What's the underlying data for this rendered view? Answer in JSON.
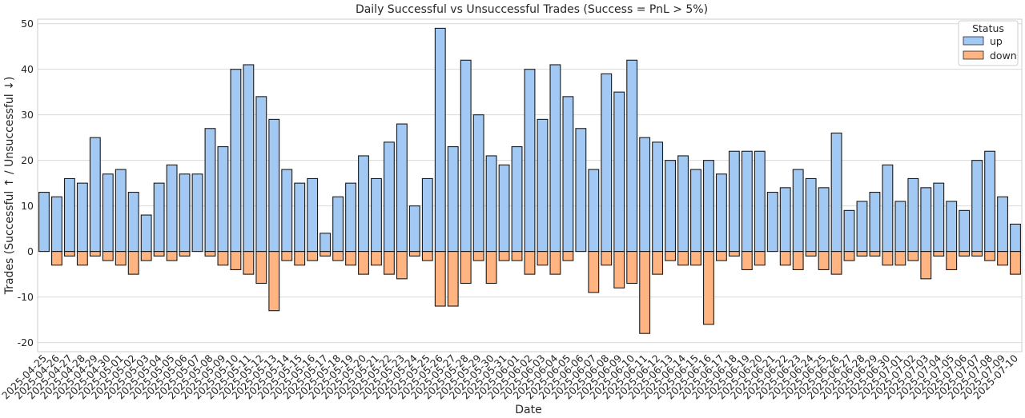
{
  "chart_data": {
    "type": "bar",
    "title": "Daily Successful vs Unsuccessful Trades (Success = PnL > 5%)",
    "xlabel": "Date",
    "ylabel": "Trades (Successful ↑ / Unsuccessful ↓)",
    "ylim": [
      -22,
      51
    ],
    "yticks": [
      -20,
      -10,
      0,
      10,
      20,
      30,
      40,
      50
    ],
    "grid": true,
    "legend": {
      "title": "Status",
      "position": "top-right"
    },
    "categories": [
      "2025-04-25",
      "2025-04-26",
      "2025-04-27",
      "2025-04-28",
      "2025-04-29",
      "2025-04-30",
      "2025-05-01",
      "2025-05-02",
      "2025-05-03",
      "2025-05-04",
      "2025-05-05",
      "2025-05-06",
      "2025-05-07",
      "2025-05-08",
      "2025-05-09",
      "2025-05-10",
      "2025-05-11",
      "2025-05-12",
      "2025-05-13",
      "2025-05-14",
      "2025-05-15",
      "2025-05-16",
      "2025-05-17",
      "2025-05-18",
      "2025-05-19",
      "2025-05-20",
      "2025-05-21",
      "2025-05-22",
      "2025-05-23",
      "2025-05-24",
      "2025-05-25",
      "2025-05-26",
      "2025-05-27",
      "2025-05-28",
      "2025-05-29",
      "2025-05-30",
      "2025-05-31",
      "2025-06-01",
      "2025-06-02",
      "2025-06-03",
      "2025-06-04",
      "2025-06-05",
      "2025-06-06",
      "2025-06-07",
      "2025-06-08",
      "2025-06-09",
      "2025-06-10",
      "2025-06-11",
      "2025-06-12",
      "2025-06-13",
      "2025-06-14",
      "2025-06-15",
      "2025-06-16",
      "2025-06-17",
      "2025-06-18",
      "2025-06-19",
      "2025-06-20",
      "2025-06-21",
      "2025-06-22",
      "2025-06-23",
      "2025-06-24",
      "2025-06-25",
      "2025-06-26",
      "2025-06-27",
      "2025-06-28",
      "2025-06-29",
      "2025-06-30",
      "2025-07-01",
      "2025-07-02",
      "2025-07-03",
      "2025-07-04",
      "2025-07-05",
      "2025-07-06",
      "2025-07-07",
      "2025-07-08",
      "2025-07-09",
      "2025-07-10"
    ],
    "series": [
      {
        "name": "up",
        "color": "#a1c9f4",
        "values": [
          13,
          12,
          16,
          15,
          25,
          17,
          18,
          13,
          8,
          15,
          19,
          17,
          17,
          27,
          23,
          40,
          41,
          34,
          29,
          18,
          15,
          16,
          4,
          12,
          15,
          21,
          16,
          24,
          28,
          10,
          16,
          49,
          23,
          42,
          30,
          21,
          19,
          23,
          40,
          29,
          41,
          34,
          27,
          18,
          39,
          35,
          42,
          25,
          24,
          20,
          21,
          18,
          20,
          17,
          22,
          22,
          22,
          13,
          14,
          18,
          16,
          14,
          26,
          9,
          11,
          13,
          19,
          11,
          16,
          14,
          15,
          11,
          9,
          20,
          22,
          12,
          6
        ]
      },
      {
        "name": "down",
        "color": "#ffb482",
        "values": [
          0,
          -3,
          -1,
          -3,
          -1,
          -2,
          -3,
          -5,
          -2,
          -1,
          -2,
          -1,
          0,
          -1,
          -3,
          -4,
          -5,
          -7,
          -13,
          -2,
          -3,
          -2,
          -1,
          -2,
          -3,
          -5,
          -3,
          -5,
          -6,
          -1,
          -2,
          -12,
          -12,
          -7,
          -2,
          -7,
          -2,
          -2,
          -5,
          -3,
          -5,
          -2,
          0,
          -9,
          -3,
          -8,
          -7,
          -18,
          -5,
          -2,
          -3,
          -3,
          -16,
          -2,
          -1,
          -4,
          -3,
          0,
          -3,
          -4,
          -1,
          -4,
          -5,
          -2,
          -1,
          -1,
          -3,
          -3,
          -2,
          -6,
          -1,
          -4,
          -1,
          -1,
          -2,
          -3,
          -5
        ]
      }
    ]
  }
}
